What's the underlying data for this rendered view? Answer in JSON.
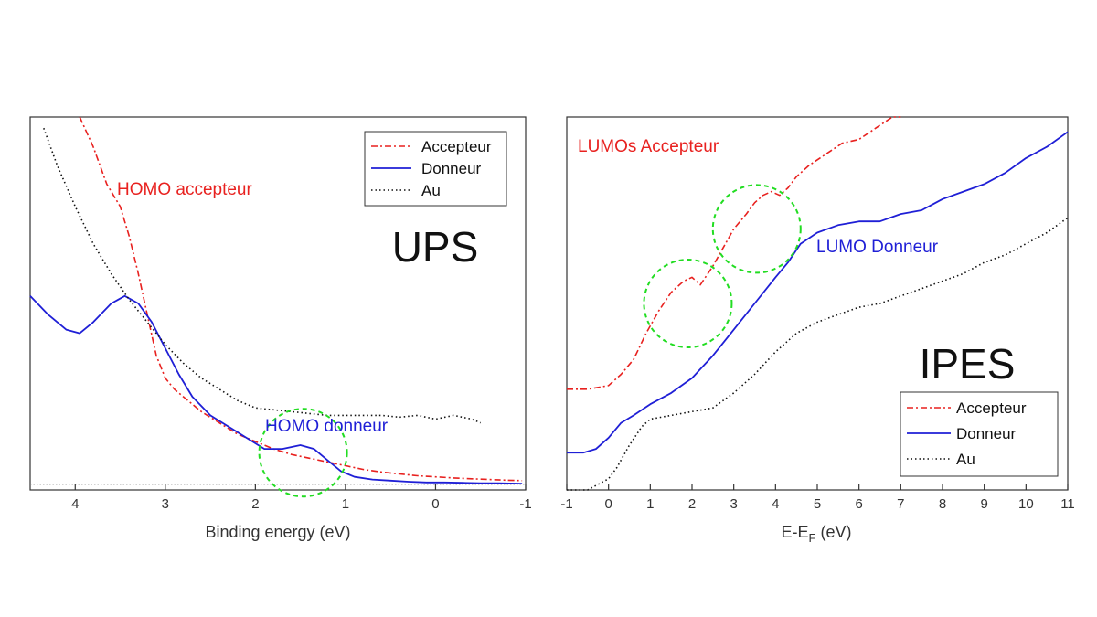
{
  "chart_data": [
    {
      "type": "line",
      "xlabel": "Binding energy (eV)",
      "ylabel": "",
      "xlim": [
        4.5,
        -1
      ],
      "ylim": [
        0,
        1
      ],
      "x_reversed": true,
      "xticks": [
        "4",
        "3",
        "2",
        "1",
        "0",
        "-1"
      ],
      "xtick_values": [
        4,
        3,
        2,
        1,
        0,
        -1
      ],
      "big_label": "UPS",
      "legend": {
        "placement": "top-right",
        "entries": [
          "Accepteur",
          "Donneur",
          "Au"
        ]
      },
      "annotations": [
        {
          "text": "HOMO accepteur",
          "color": "#e8211f"
        },
        {
          "text": "HOMO donneur",
          "color": "#1f1fd6"
        }
      ],
      "circles": [
        {
          "cx": 1.47,
          "cy": 0.1,
          "r_x": 0.48
        }
      ],
      "baseline": 0.015,
      "series": [
        {
          "name": "Accepteur",
          "color": "#e8211f",
          "style": "dashdot",
          "x": [
            3.95,
            3.8,
            3.65,
            3.5,
            3.4,
            3.3,
            3.2,
            3.1,
            3.0,
            2.9,
            2.8,
            2.6,
            2.4,
            2.2,
            2.0,
            1.8,
            1.6,
            1.4,
            1.2,
            1.0,
            0.8,
            0.6,
            0.4,
            0.2,
            0.0,
            -0.2,
            -0.4,
            -0.6,
            -0.8,
            -0.96
          ],
          "y": [
            1.0,
            0.92,
            0.82,
            0.76,
            0.68,
            0.58,
            0.47,
            0.36,
            0.3,
            0.27,
            0.25,
            0.21,
            0.18,
            0.15,
            0.13,
            0.11,
            0.095,
            0.085,
            0.075,
            0.065,
            0.055,
            0.048,
            0.043,
            0.038,
            0.035,
            0.032,
            0.03,
            0.028,
            0.026,
            0.025
          ]
        },
        {
          "name": "Donneur",
          "color": "#1f1fd6",
          "style": "solid",
          "x": [
            4.5,
            4.3,
            4.1,
            3.95,
            3.8,
            3.6,
            3.45,
            3.3,
            3.15,
            3.0,
            2.85,
            2.7,
            2.5,
            2.3,
            2.1,
            1.9,
            1.7,
            1.5,
            1.35,
            1.2,
            1.05,
            0.9,
            0.7,
            0.5,
            0.3,
            0.1,
            -0.1,
            -0.3,
            -0.5,
            -0.7,
            -0.96
          ],
          "y": [
            0.52,
            0.47,
            0.43,
            0.42,
            0.45,
            0.5,
            0.52,
            0.5,
            0.45,
            0.38,
            0.31,
            0.25,
            0.2,
            0.17,
            0.14,
            0.11,
            0.11,
            0.12,
            0.11,
            0.08,
            0.05,
            0.035,
            0.028,
            0.025,
            0.022,
            0.02,
            0.02,
            0.019,
            0.018,
            0.018,
            0.017
          ]
        },
        {
          "name": "Au",
          "color": "#111111",
          "style": "dotted",
          "x": [
            4.35,
            4.2,
            4.0,
            3.8,
            3.6,
            3.4,
            3.2,
            3.0,
            2.8,
            2.6,
            2.4,
            2.2,
            2.0,
            1.8,
            1.6,
            1.4,
            1.2,
            1.0,
            0.8,
            0.6,
            0.4,
            0.2,
            0.0,
            -0.2,
            -0.4,
            -0.5
          ],
          "y": [
            0.97,
            0.87,
            0.76,
            0.66,
            0.58,
            0.51,
            0.45,
            0.39,
            0.34,
            0.3,
            0.27,
            0.24,
            0.22,
            0.215,
            0.21,
            0.205,
            0.2,
            0.2,
            0.2,
            0.2,
            0.195,
            0.2,
            0.19,
            0.2,
            0.19,
            0.18
          ]
        }
      ]
    },
    {
      "type": "line",
      "xlabel_main": "E-E",
      "xlabel_sub": "F",
      "xlabel_unit": " (eV)",
      "ylabel": "",
      "xlim": [
        -1,
        11
      ],
      "ylim": [
        0,
        1
      ],
      "xticks": [
        "-1",
        "0",
        "1",
        "2",
        "3",
        "4",
        "5",
        "6",
        "7",
        "8",
        "9",
        "10",
        "11"
      ],
      "xtick_values": [
        -1,
        0,
        1,
        2,
        3,
        4,
        5,
        6,
        7,
        8,
        9,
        10,
        11
      ],
      "big_label": "IPES",
      "legend": {
        "placement": "bottom-right",
        "entries": [
          "Accepteur",
          "Donneur",
          "Au"
        ]
      },
      "annotations": [
        {
          "text": "LUMOs Accepteur",
          "color": "#e8211f"
        },
        {
          "text": "LUMO Donneur",
          "color": "#1f1fd6"
        }
      ],
      "circles": [
        {
          "cx": 1.9,
          "cy": 0.5
        },
        {
          "cx": 3.55,
          "cy": 0.7
        }
      ],
      "series": [
        {
          "name": "Accepteur",
          "color": "#e8211f",
          "style": "dashdot",
          "x": [
            -1,
            -0.5,
            0,
            0.3,
            0.6,
            0.9,
            1.2,
            1.5,
            1.8,
            2.0,
            2.2,
            2.5,
            2.8,
            3.0,
            3.3,
            3.5,
            3.7,
            3.9,
            4.1,
            4.3,
            4.5,
            4.8,
            5.2,
            5.6,
            6.0,
            6.4,
            6.8,
            7.0
          ],
          "y": [
            0.27,
            0.27,
            0.28,
            0.31,
            0.35,
            0.42,
            0.48,
            0.53,
            0.56,
            0.57,
            0.55,
            0.6,
            0.66,
            0.7,
            0.74,
            0.77,
            0.79,
            0.8,
            0.79,
            0.81,
            0.84,
            0.87,
            0.9,
            0.93,
            0.94,
            0.97,
            1.0,
            1.02
          ]
        },
        {
          "name": "Donneur",
          "color": "#1f1fd6",
          "style": "solid",
          "x": [
            -1,
            -0.6,
            -0.3,
            0,
            0.3,
            0.6,
            1.0,
            1.5,
            2.0,
            2.5,
            3.0,
            3.5,
            4.0,
            4.3,
            4.6,
            5.0,
            5.5,
            6.0,
            6.5,
            7.0,
            7.5,
            8.0,
            8.5,
            9.0,
            9.5,
            10.0,
            10.5,
            11.0
          ],
          "y": [
            0.1,
            0.1,
            0.11,
            0.14,
            0.18,
            0.2,
            0.23,
            0.26,
            0.3,
            0.36,
            0.43,
            0.5,
            0.57,
            0.61,
            0.66,
            0.69,
            0.71,
            0.72,
            0.72,
            0.74,
            0.75,
            0.78,
            0.8,
            0.82,
            0.85,
            0.89,
            0.92,
            0.96
          ]
        },
        {
          "name": "Au",
          "color": "#111111",
          "style": "dotted",
          "x": [
            -1,
            -0.5,
            0,
            0.2,
            0.5,
            0.8,
            1.0,
            1.5,
            2.0,
            2.5,
            3.0,
            3.5,
            4.0,
            4.5,
            5.0,
            5.5,
            6.0,
            6.5,
            7.0,
            7.5,
            8.0,
            8.5,
            9.0,
            9.5,
            10.0,
            10.5,
            11.0
          ],
          "y": [
            0.0,
            0.0,
            0.03,
            0.06,
            0.12,
            0.17,
            0.19,
            0.2,
            0.21,
            0.22,
            0.26,
            0.31,
            0.37,
            0.42,
            0.45,
            0.47,
            0.49,
            0.5,
            0.52,
            0.54,
            0.56,
            0.58,
            0.61,
            0.63,
            0.66,
            0.69,
            0.73
          ]
        }
      ]
    }
  ]
}
